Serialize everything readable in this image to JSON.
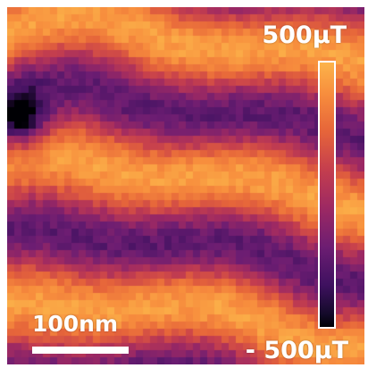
{
  "image": {
    "colormap": "inferno",
    "colormap_colors": [
      "#000004",
      "#3f1160",
      "#6c1d72",
      "#9d2963",
      "#c63f4d",
      "#e6653a",
      "#f78d3d",
      "#fcb44a"
    ]
  },
  "colorbar": {
    "max_label": "500μT",
    "min_label": "- 500μT"
  },
  "scale_bar": {
    "label": "100nm"
  }
}
